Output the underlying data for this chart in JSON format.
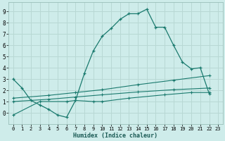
{
  "xlabel": "Humidex (Indice chaleur)",
  "bg_color": "#ceecea",
  "grid_color": "#b8d8d4",
  "line_color": "#1a7a6e",
  "xlim": [
    -0.5,
    23.5
  ],
  "ylim": [
    -1.0,
    9.8
  ],
  "xtick_labels": [
    "0",
    "1",
    "2",
    "3",
    "4",
    "5",
    "6",
    "7",
    "8",
    "9",
    "10",
    "11",
    "12",
    "13",
    "14",
    "15",
    "16",
    "17",
    "18",
    "19",
    "20",
    "21",
    "22",
    "23"
  ],
  "xtick_vals": [
    0,
    1,
    2,
    3,
    4,
    5,
    6,
    7,
    8,
    9,
    10,
    11,
    12,
    13,
    14,
    15,
    16,
    17,
    18,
    19,
    20,
    21,
    22,
    23
  ],
  "ytick_vals": [
    0,
    1,
    2,
    3,
    4,
    5,
    6,
    7,
    8,
    9
  ],
  "series_main": {
    "x": [
      0,
      1,
      2,
      3,
      4,
      5,
      6,
      7,
      8,
      9,
      10,
      11,
      12,
      13,
      14,
      15,
      16,
      17,
      18,
      19,
      20,
      21,
      22
    ],
    "y": [
      3.0,
      2.2,
      1.1,
      0.7,
      0.3,
      -0.2,
      -0.4,
      1.1,
      3.5,
      5.5,
      6.8,
      7.5,
      8.3,
      8.8,
      8.8,
      9.2,
      7.6,
      7.6,
      6.0,
      4.5,
      3.9,
      4.0,
      1.7
    ]
  },
  "series_line1": {
    "x": [
      0,
      4,
      7,
      10,
      14,
      18,
      22
    ],
    "y": [
      1.0,
      1.2,
      1.4,
      1.6,
      1.85,
      2.05,
      2.2
    ]
  },
  "series_line2": {
    "x": [
      0,
      4,
      7,
      10,
      14,
      18,
      22
    ],
    "y": [
      1.3,
      1.55,
      1.8,
      2.05,
      2.5,
      2.9,
      3.3
    ]
  },
  "series_line3": {
    "x": [
      0,
      3,
      6,
      7,
      9,
      10,
      13,
      17,
      20,
      22
    ],
    "y": [
      -0.2,
      1.0,
      1.0,
      1.1,
      1.0,
      1.0,
      1.3,
      1.6,
      1.8,
      1.8
    ]
  }
}
